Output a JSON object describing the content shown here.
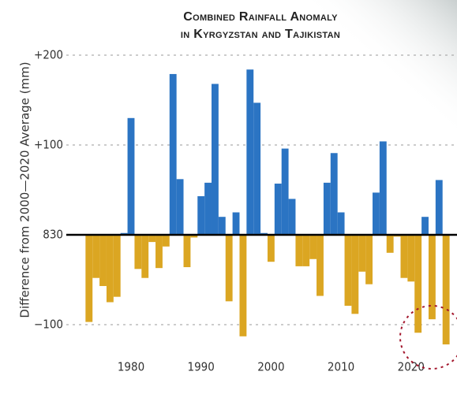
{
  "chart_data": {
    "type": "bar",
    "title_lines": [
      "Combined Rainfall Anomaly",
      "in Kyrgyzstan and Tajikistan"
    ],
    "y_label": "Difference from 2000—2020 Average (mm)",
    "x": [
      1974,
      1975,
      1976,
      1977,
      1978,
      1979,
      1980,
      1981,
      1982,
      1983,
      1984,
      1985,
      1986,
      1987,
      1988,
      1989,
      1990,
      1991,
      1992,
      1993,
      1994,
      1995,
      1996,
      1997,
      1998,
      1999,
      2000,
      2001,
      2002,
      2003,
      2004,
      2005,
      2006,
      2007,
      2008,
      2009,
      2010,
      2011,
      2012,
      2013,
      2014,
      2015,
      2016,
      2017,
      2018,
      2019,
      2020,
      2021,
      2022,
      2023,
      2024,
      2025
    ],
    "values": [
      -97,
      -48,
      -57,
      -75,
      -69,
      2,
      130,
      -38,
      -48,
      -8,
      -37,
      -13,
      179,
      62,
      -36,
      -3,
      43,
      58,
      168,
      20,
      -74,
      25,
      -113,
      184,
      147,
      2,
      -30,
      57,
      96,
      40,
      -35,
      -35,
      -27,
      -68,
      58,
      91,
      25,
      -79,
      -88,
      -41,
      -55,
      47,
      104,
      -20,
      -2,
      -48,
      -52,
      -109,
      20,
      -94,
      61,
      -122
    ],
    "positive_color": "#2b74c3",
    "negative_color": "#dba622",
    "xlim": [
      1973.5,
      2027
    ],
    "xticks": [
      1980,
      1990,
      2000,
      2010,
      2020
    ],
    "ylim": [
      -145,
      205
    ],
    "yticks": [
      {
        "value": 200,
        "label": "+200"
      },
      {
        "value": 100,
        "label": "+100"
      },
      {
        "value": 0,
        "label": "830"
      },
      {
        "value": -100,
        "label": "−100"
      }
    ],
    "grid": true
  }
}
